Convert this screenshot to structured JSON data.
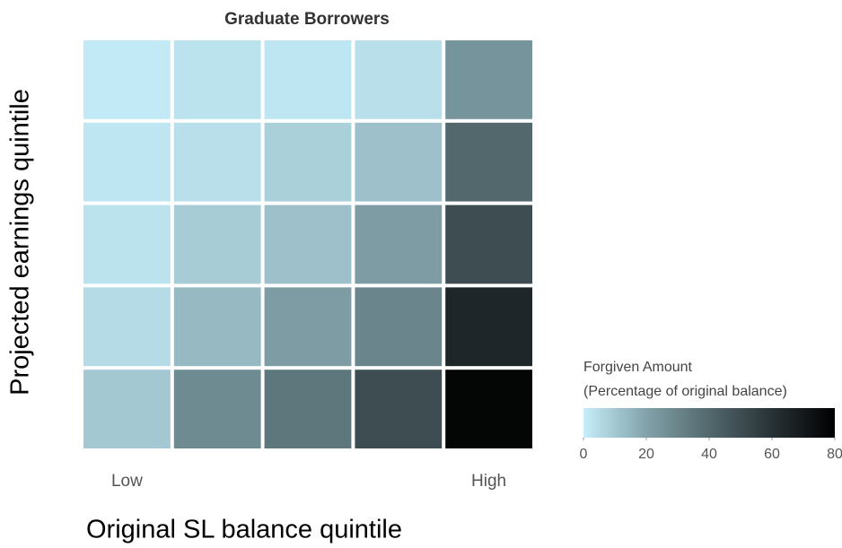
{
  "chart_data": {
    "type": "heatmap",
    "title": "Graduate Borrowers",
    "xlabel": "Original SL balance quintile",
    "ylabel": "Projected earnings quintile",
    "categories": [
      "Low",
      null,
      null,
      null,
      "High"
    ],
    "values": [
      [
        1,
        3,
        2,
        4,
        25
      ],
      [
        2,
        4,
        8,
        12,
        40
      ],
      [
        3,
        9,
        12,
        22,
        50
      ],
      [
        5,
        14,
        22,
        30,
        65
      ],
      [
        10,
        28,
        35,
        50,
        78
      ]
    ],
    "colorbar": {
      "title": [
        "Forgiven Amount",
        "(Percentage of original balance)"
      ],
      "lim": [
        0,
        80
      ],
      "ticks": [
        0,
        20,
        40,
        60,
        80
      ],
      "color_stops": [
        {
          "value": 0,
          "color": "#c5eefa"
        },
        {
          "value": 20,
          "color": "#82a2aa"
        },
        {
          "value": 40,
          "color": "#52686d"
        },
        {
          "value": 60,
          "color": "#283236"
        },
        {
          "value": 80,
          "color": "#000000"
        }
      ]
    }
  }
}
